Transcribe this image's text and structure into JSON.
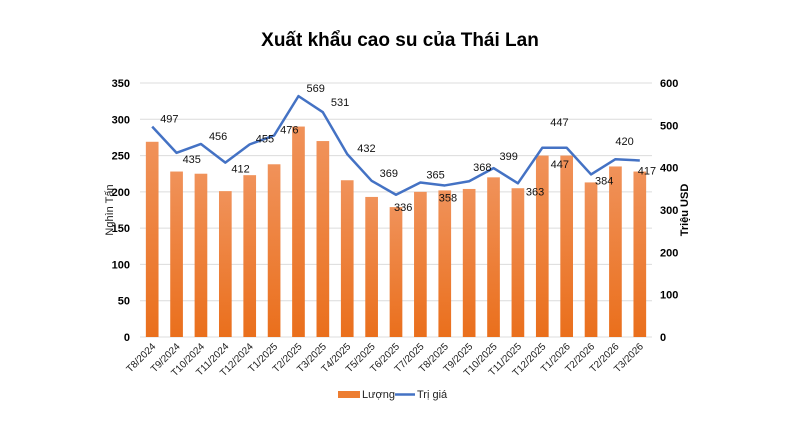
{
  "chart_data": {
    "type": "bar+line",
    "title": "Xuất khẩu cao su của Thái Lan",
    "categories": [
      "T8/2024",
      "T9/2024",
      "T10/2024",
      "T11/2024",
      "T12/2024",
      "T1/2025",
      "T2/2025",
      "T3/2025",
      "T4/2025",
      "T5/2025",
      "T6/2025",
      "T7/2025",
      "T8/2025",
      "T9/2025",
      "T10/2025",
      "T11/2025",
      "T12/2025",
      "T1/2026",
      "T2/2026",
      "T2/2026",
      "T3/2026"
    ],
    "series": [
      {
        "name": "Lượng",
        "type": "bar",
        "axis": "left",
        "color": "#ED7D31",
        "values": [
          269,
          228,
          225,
          201,
          223,
          238,
          290,
          270,
          216,
          193,
          179,
          200,
          202,
          204,
          220,
          205,
          250,
          250,
          213,
          235,
          228
        ]
      },
      {
        "name": "Trị giá",
        "type": "line",
        "axis": "right",
        "color": "#4472C4",
        "values": [
          497,
          435,
          456,
          412,
          455,
          476,
          569,
          531,
          432,
          369,
          336,
          365,
          358,
          368,
          399,
          363,
          447,
          447,
          384,
          420,
          417
        ],
        "labels": [
          "497",
          "435",
          "456",
          "412",
          "455",
          "476",
          "569",
          "531",
          "432",
          "369",
          "336",
          "365",
          "358",
          "368",
          "399",
          "363",
          "447",
          "447",
          "384",
          "420",
          "417"
        ]
      }
    ],
    "ylabel": "Nghìn Tấn",
    "ylim": [
      0,
      350
    ],
    "yticks": [
      "0",
      "50",
      "100",
      "150",
      "200",
      "250",
      "300",
      "350"
    ],
    "y2label": "Triệu USD",
    "y2lim": [
      0,
      600
    ],
    "y2ticks": [
      "0",
      "100",
      "200",
      "300",
      "400",
      "500",
      "600"
    ],
    "grid": true,
    "legend": "bottom"
  }
}
